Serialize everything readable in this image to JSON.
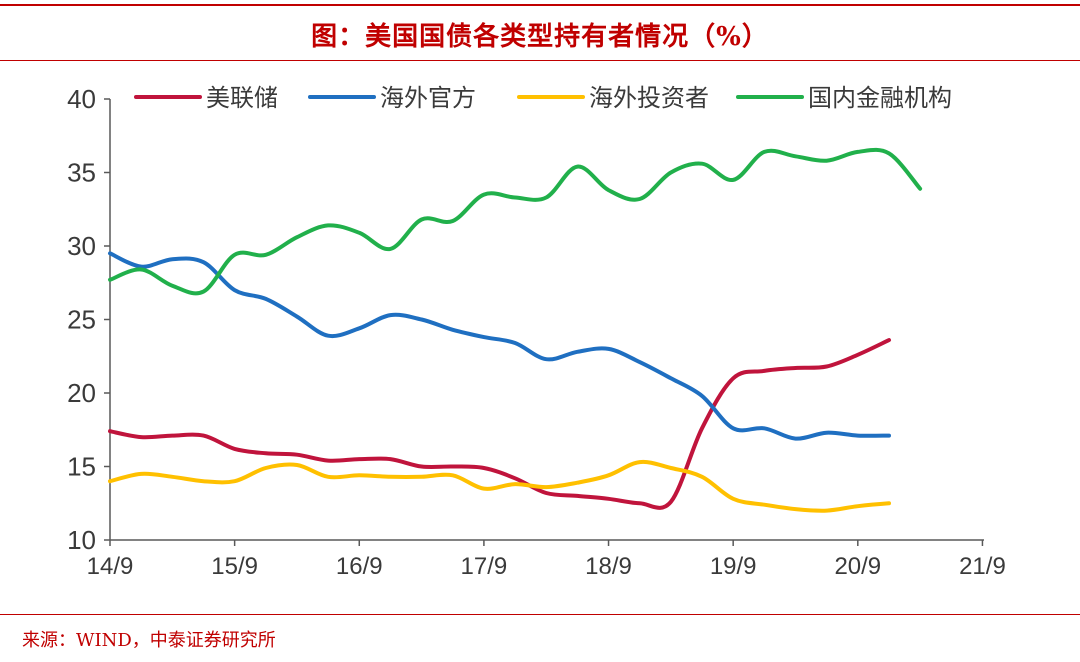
{
  "title": "图：美国国债各类型持有者情况（%）",
  "source": "来源：WIND，中泰证券研究所",
  "chart_data": {
    "type": "line",
    "title": "图：美国国债各类型持有者情况（%）",
    "xlabel": "",
    "ylabel": "",
    "x_ticks": [
      "14/9",
      "15/9",
      "16/9",
      "17/9",
      "18/9",
      "19/9",
      "20/9",
      "21/9"
    ],
    "ylim": [
      10,
      40
    ],
    "y_ticks": [
      10,
      15,
      20,
      25,
      30,
      35,
      40
    ],
    "grid": false,
    "legend_position": "top",
    "x_unit": "quarters since 2014Q3",
    "series": [
      {
        "name": "美联储",
        "color": "#c0143c",
        "x": [
          0,
          1,
          2,
          3,
          4,
          5,
          6,
          7,
          8,
          9,
          10,
          11,
          12,
          13,
          14,
          15,
          16,
          17,
          18,
          19,
          20,
          21,
          22,
          23,
          24,
          25,
          26,
          27,
          28
        ],
        "values": [
          17.4,
          17.0,
          17.1,
          17.1,
          16.2,
          15.9,
          15.8,
          15.4,
          15.5,
          15.5,
          15.0,
          15.0,
          14.9,
          14.2,
          13.2,
          13.0,
          12.8,
          12.5,
          12.6,
          17.6,
          21.0,
          21.5,
          21.7,
          21.8,
          22.6,
          23.6,
          null,
          null,
          null
        ]
      },
      {
        "name": "海外官方",
        "color": "#1f6fc1",
        "x": [
          0,
          1,
          2,
          3,
          4,
          5,
          6,
          7,
          8,
          9,
          10,
          11,
          12,
          13,
          14,
          15,
          16,
          17,
          18,
          19,
          20,
          21,
          22,
          23,
          24,
          25,
          26,
          27,
          28
        ],
        "values": [
          29.5,
          28.6,
          29.1,
          28.9,
          27.0,
          26.4,
          25.2,
          23.9,
          24.4,
          25.3,
          25.0,
          24.3,
          23.8,
          23.4,
          22.3,
          22.8,
          23.0,
          22.1,
          21.0,
          19.8,
          17.6,
          17.6,
          16.9,
          17.3,
          17.1,
          17.1,
          null,
          null,
          null
        ]
      },
      {
        "name": "海外投资者",
        "color": "#ffc000",
        "x": [
          0,
          1,
          2,
          3,
          4,
          5,
          6,
          7,
          8,
          9,
          10,
          11,
          12,
          13,
          14,
          15,
          16,
          17,
          18,
          19,
          20,
          21,
          22,
          23,
          24,
          25,
          26,
          27,
          28
        ],
        "values": [
          14.0,
          14.5,
          14.3,
          14.0,
          14.0,
          14.9,
          15.1,
          14.3,
          14.4,
          14.3,
          14.3,
          14.4,
          13.5,
          13.8,
          13.6,
          13.9,
          14.4,
          15.3,
          14.9,
          14.3,
          12.8,
          12.4,
          12.1,
          12.0,
          12.3,
          12.5,
          null,
          null,
          null
        ]
      },
      {
        "name": "国内金融机构",
        "color": "#21b04b",
        "x": [
          0,
          1,
          2,
          3,
          4,
          5,
          6,
          7,
          8,
          9,
          10,
          11,
          12,
          13,
          14,
          15,
          16,
          17,
          18,
          19,
          20,
          21,
          22,
          23,
          24,
          25,
          26,
          27,
          28
        ],
        "values": [
          27.7,
          28.4,
          27.3,
          26.9,
          29.4,
          29.4,
          30.6,
          31.4,
          30.9,
          29.8,
          31.8,
          31.7,
          33.5,
          33.3,
          33.3,
          35.4,
          33.8,
          33.2,
          35.0,
          35.6,
          34.5,
          36.4,
          36.1,
          35.8,
          36.4,
          36.3,
          33.9,
          null,
          null
        ]
      }
    ]
  }
}
